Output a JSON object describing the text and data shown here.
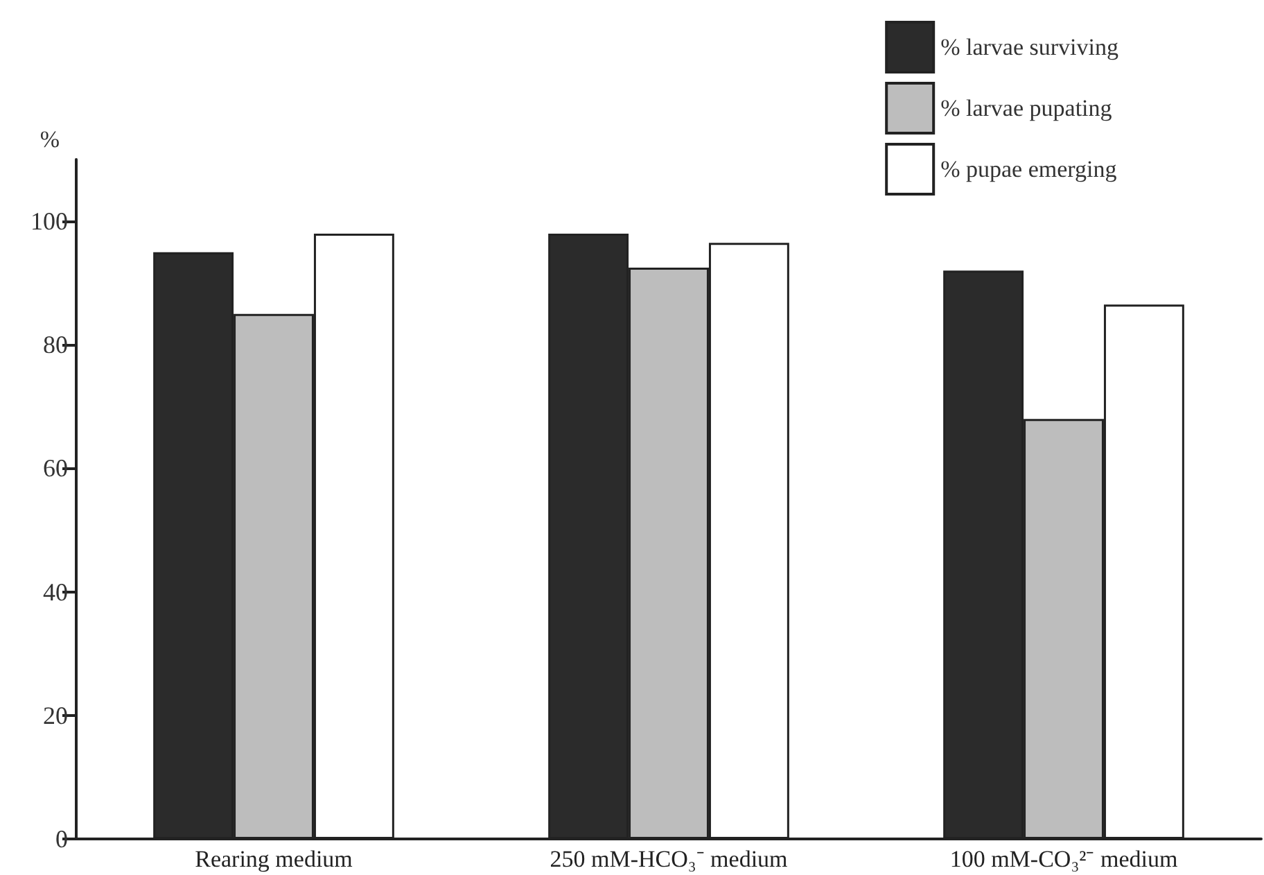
{
  "chart_data": {
    "type": "bar",
    "ylabel": "%",
    "categories": [
      "Rearing medium",
      "250 mM-HCO₃⁻ medium",
      "100 mM-CO₃²⁻ medium"
    ],
    "series": [
      {
        "name": "% larvae surviving",
        "color": "#2b2b2b",
        "values": [
          95,
          98,
          92
        ]
      },
      {
        "name": "% larvae pupating",
        "color": "#bdbdbd",
        "values": [
          85,
          92.5,
          68
        ]
      },
      {
        "name": "% pupae emerging",
        "color": "#ffffff",
        "values": [
          98,
          96.5,
          86.5
        ]
      }
    ],
    "ylim": [
      0,
      110
    ],
    "yticks": [
      0,
      20,
      40,
      60,
      80,
      100
    ],
    "grid": false,
    "legend": "top right"
  }
}
